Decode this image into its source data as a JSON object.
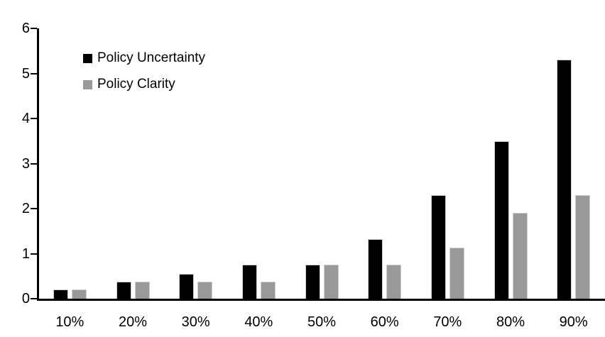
{
  "chart_data": {
    "type": "bar",
    "title": "",
    "xlabel": "",
    "ylabel": "",
    "categories": [
      "10%",
      "20%",
      "30%",
      "40%",
      "50%",
      "60%",
      "70%",
      "80%",
      "90%"
    ],
    "series": [
      {
        "name": "Policy Uncertainty",
        "color": "#000000",
        "values": [
          0.2,
          0.38,
          0.55,
          0.75,
          0.76,
          1.32,
          2.3,
          3.5,
          5.3
        ]
      },
      {
        "name": "Policy Clarity",
        "color": "#999999",
        "values": [
          0.2,
          0.38,
          0.38,
          0.38,
          0.75,
          0.75,
          1.13,
          1.9,
          2.3
        ]
      }
    ],
    "ylim": [
      0,
      6
    ],
    "yticks": [
      0,
      1,
      2,
      3,
      4,
      5,
      6
    ],
    "grid": false,
    "legend_position": "top-left-inside",
    "axis_color": "#000000",
    "background_color": "#ffffff"
  }
}
